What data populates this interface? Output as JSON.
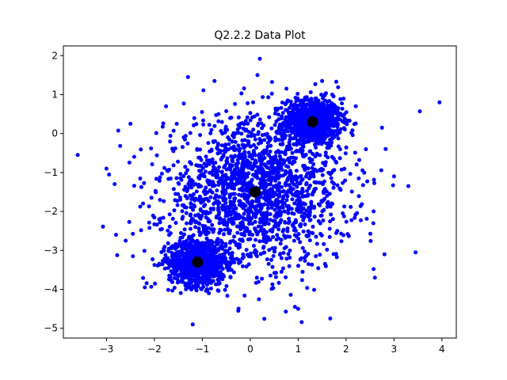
{
  "chart_data": {
    "type": "scatter",
    "title": "Q2.2.2 Data Plot",
    "xlabel": "",
    "ylabel": "",
    "xlim": [
      -3.9,
      4.3
    ],
    "ylim": [
      -5.25,
      2.25
    ],
    "xticks": [
      -3,
      -2,
      -1,
      0,
      1,
      2,
      3,
      4
    ],
    "yticks": [
      -5,
      -4,
      -3,
      -2,
      -1,
      0,
      1,
      2
    ],
    "grid": false,
    "legend": "none",
    "point_color": "#0000ff",
    "centroid_color": "#000000",
    "centroids": [
      {
        "x": 1.3,
        "y": 0.3
      },
      {
        "x": 0.1,
        "y": -1.5
      },
      {
        "x": -1.1,
        "y": -3.3
      }
    ],
    "clusters": [
      {
        "center_x": 1.3,
        "center_y": 0.3,
        "spread": 0.3,
        "count": 900
      },
      {
        "center_x": -1.1,
        "center_y": -3.3,
        "spread": 0.3,
        "count": 900
      },
      {
        "center_x": 0.1,
        "center_y": -1.5,
        "spread": 0.95,
        "count": 1800
      }
    ],
    "outliers": [
      {
        "x": -3.6,
        "y": -0.55
      },
      {
        "x": 3.95,
        "y": 0.8
      },
      {
        "x": 0.2,
        "y": 1.92
      },
      {
        "x": -1.2,
        "y": -4.9
      },
      {
        "x": -0.25,
        "y": -4.55
      },
      {
        "x": 1.0,
        "y": -4.5
      },
      {
        "x": 3.45,
        "y": -3.05
      },
      {
        "x": 3.3,
        "y": -1.35
      },
      {
        "x": -2.8,
        "y": -2.6
      },
      {
        "x": -2.5,
        "y": 0.25
      },
      {
        "x": 2.75,
        "y": 0.15
      },
      {
        "x": -1.3,
        "y": 1.45
      },
      {
        "x": 0.15,
        "y": 1.5
      },
      {
        "x": 1.5,
        "y": 1.35
      },
      {
        "x": -3.0,
        "y": -0.9
      },
      {
        "x": 2.6,
        "y": -3.7
      },
      {
        "x": -2.2,
        "y": -3.95
      },
      {
        "x": 2.8,
        "y": -3.1
      },
      {
        "x": -2.6,
        "y": -2.75
      },
      {
        "x": 3.0,
        "y": -1.1
      }
    ]
  }
}
